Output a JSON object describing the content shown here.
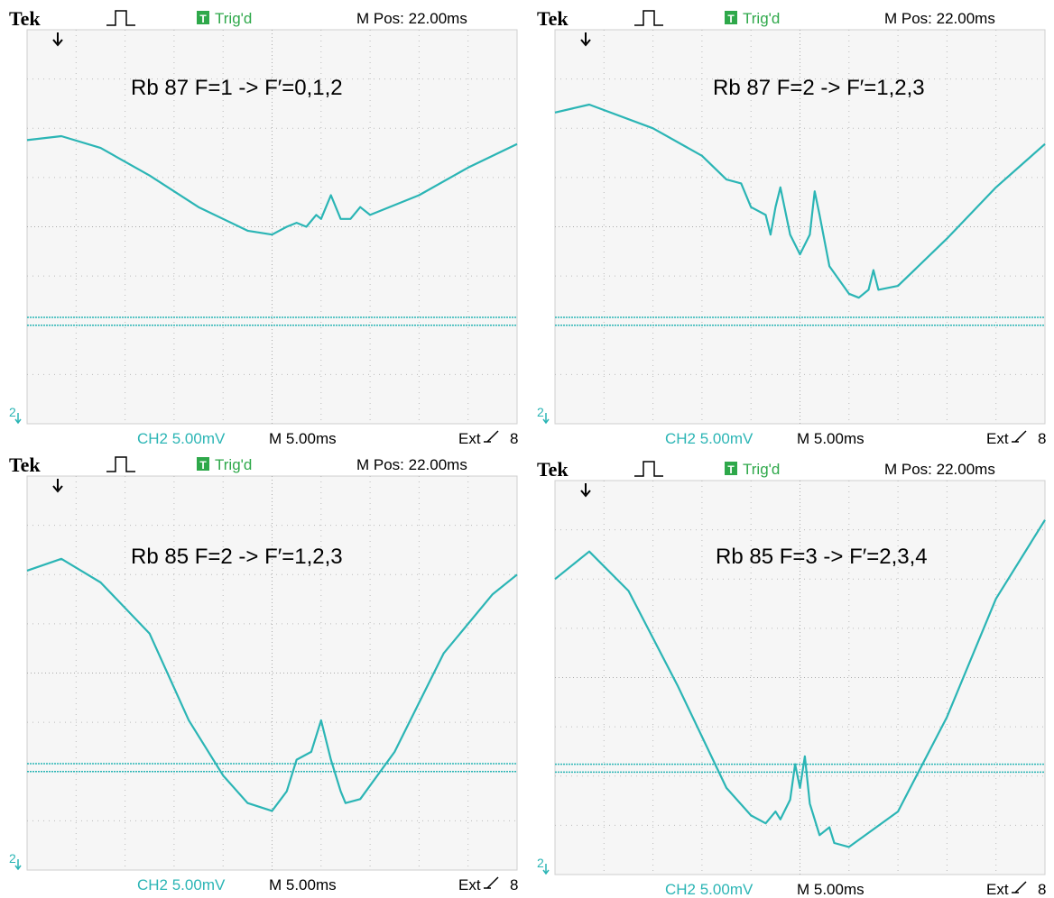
{
  "panels": [
    {
      "brand": "Tek",
      "trigger_icon": "T",
      "trigger": "Trig'd",
      "position": "M Pos: 22.00ms",
      "label": "Rb 87  F=1 -> F′=0,1,2",
      "channel_marker": "2",
      "channel": "CH2  5.00mV",
      "timebase": "M 5.00ms",
      "source": "Ext",
      "level": "8"
    },
    {
      "brand": "Tek",
      "trigger_icon": "T",
      "trigger": "Trig'd",
      "position": "M Pos: 22.00ms",
      "label": "Rb 87  F=2 -> F′=1,2,3",
      "channel_marker": "2",
      "channel": "CH2  5.00mV",
      "timebase": "M 5.00ms",
      "source": "Ext",
      "level": "8"
    },
    {
      "brand": "Tek",
      "trigger_icon": "T",
      "trigger": "Trig'd",
      "position": "M Pos: 22.00ms",
      "label": "Rb 85  F=2 -> F′=1,2,3",
      "channel_marker": "2",
      "channel": "CH2  5.00mV",
      "timebase": "M 5.00ms",
      "source": "Ext",
      "level": "8"
    },
    {
      "brand": "Tek",
      "trigger_icon": "T",
      "trigger": "Trig'd",
      "position": "M Pos: 22.00ms",
      "label": "Rb 85  F=3 -> F′=2,3,4",
      "channel_marker": "2",
      "channel": "CH2  5.00mV",
      "timebase": "M 5.00ms",
      "source": "Ext",
      "level": "8"
    }
  ]
}
